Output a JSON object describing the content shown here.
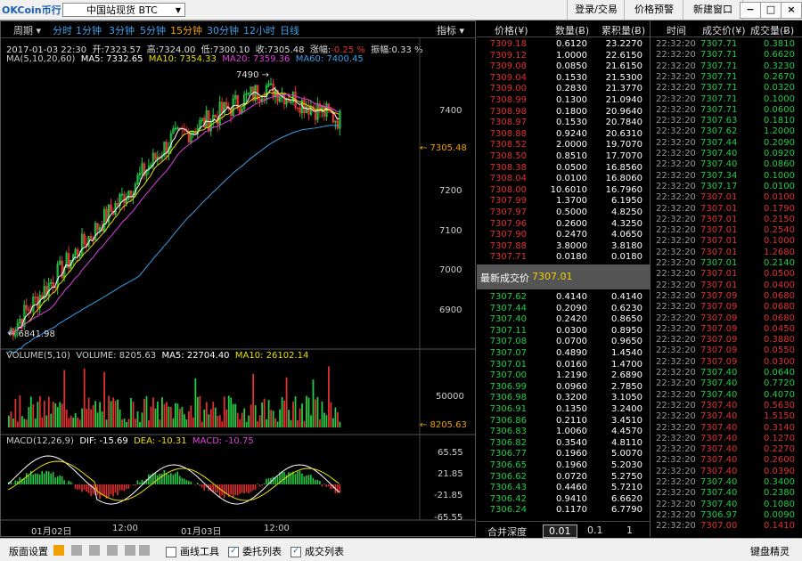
{
  "title": {
    "logo_text": "OKCoin币行",
    "market": "中国站现货 BTC",
    "buttons": [
      "登录/交易",
      "价格预警",
      "新建窗口"
    ],
    "win": [
      "−",
      "□",
      "×"
    ]
  },
  "toolbar": {
    "period_label": "周期",
    "periods": [
      "分时",
      "1分钟",
      "3分钟",
      "5分钟",
      "15分钟",
      "30分钟",
      "12小时",
      "日线"
    ],
    "active_period": "15分钟",
    "indicator_label": "指标"
  },
  "kline": {
    "date": "2017-01-03 22:30",
    "open_label": "开:",
    "open": "7323.57",
    "high_label": "高:",
    "high": "7324.00",
    "low_label": "低:",
    "low": "7300.10",
    "close_label": "收:",
    "close": "7305.48",
    "change_label": "涨幅:",
    "change": "-0.25 %",
    "amp_label": "振幅:",
    "amp": "0.33 %",
    "ma_line": "MA(5,10,20,60)",
    "ma5": "MA5: 7332.65",
    "ma10": "MA10: 7354.33",
    "ma20": "MA20: 7359.36",
    "ma60": "MA60: 7400.45",
    "price_ticks": [
      "7400",
      "7300",
      "7200",
      "7100",
      "7000",
      "6900"
    ],
    "current_price_tag": "← 7305.48",
    "high_mark": "7490 →",
    "low_mark": "← 6841.98"
  },
  "volume": {
    "label": "VOLUME(5,10)",
    "volume": "VOLUME: 8205.63",
    "ma5": "MA5: 22704.40",
    "ma10": "MA10: 26102.14",
    "tick": "50000",
    "current_tag": "← 8205.63"
  },
  "macd": {
    "label": "MACD(12,26,9)",
    "dif": "DIF: -15.69",
    "dea": "DEA: -10.31",
    "macd": "MACD: -10.75",
    "ticks": [
      "65.55",
      "21.85",
      "-21.85",
      "-65.55"
    ]
  },
  "time_axis": [
    "01月02日",
    "12:00",
    "01月03日",
    "12:00"
  ],
  "orderbook": {
    "headers": [
      "价格(¥)",
      "数量(Ƀ)",
      "累积量(Ƀ)"
    ],
    "asks": [
      [
        "7309.18",
        "0.6120",
        "23.2270"
      ],
      [
        "7309.12",
        "1.0000",
        "22.6150"
      ],
      [
        "7309.08",
        "0.0850",
        "21.6150"
      ],
      [
        "7309.04",
        "0.1530",
        "21.5300"
      ],
      [
        "7309.00",
        "0.2830",
        "21.3770"
      ],
      [
        "7308.99",
        "0.1300",
        "21.0940"
      ],
      [
        "7308.98",
        "0.1800",
        "20.9640"
      ],
      [
        "7308.97",
        "0.1530",
        "20.7840"
      ],
      [
        "7308.88",
        "0.9240",
        "20.6310"
      ],
      [
        "7308.52",
        "2.0000",
        "19.7070"
      ],
      [
        "7308.50",
        "0.8510",
        "17.7070"
      ],
      [
        "7308.38",
        "0.0500",
        "16.8560"
      ],
      [
        "7308.04",
        "0.0100",
        "16.8060"
      ],
      [
        "7308.00",
        "10.6010",
        "16.7960"
      ],
      [
        "7307.99",
        "1.3700",
        "6.1950"
      ],
      [
        "7307.97",
        "0.5000",
        "4.8250"
      ],
      [
        "7307.96",
        "0.2600",
        "4.3250"
      ],
      [
        "7307.90",
        "0.2470",
        "4.0650"
      ],
      [
        "7307.88",
        "3.8000",
        "3.8180"
      ],
      [
        "7307.71",
        "0.0180",
        "0.0180"
      ]
    ],
    "last_label": "最新成交价",
    "last_price": "7307.01",
    "bids": [
      [
        "7307.62",
        "0.4140",
        "0.4140"
      ],
      [
        "7307.44",
        "0.2090",
        "0.6230"
      ],
      [
        "7307.40",
        "0.2420",
        "0.8650"
      ],
      [
        "7307.11",
        "0.0300",
        "0.8950"
      ],
      [
        "7307.08",
        "0.0700",
        "0.9650"
      ],
      [
        "7307.07",
        "0.4890",
        "1.4540"
      ],
      [
        "7307.01",
        "0.0160",
        "1.4700"
      ],
      [
        "7307.00",
        "1.2190",
        "2.6890"
      ],
      [
        "7306.99",
        "0.0960",
        "2.7850"
      ],
      [
        "7306.98",
        "0.3200",
        "3.1050"
      ],
      [
        "7306.91",
        "0.1350",
        "3.2400"
      ],
      [
        "7306.86",
        "0.2110",
        "3.4510"
      ],
      [
        "7306.83",
        "1.0060",
        "4.4570"
      ],
      [
        "7306.82",
        "0.3540",
        "4.8110"
      ],
      [
        "7306.77",
        "0.1960",
        "5.0070"
      ],
      [
        "7306.65",
        "0.1960",
        "5.2030"
      ],
      [
        "7306.62",
        "0.0720",
        "5.2750"
      ],
      [
        "7306.43",
        "0.4460",
        "5.7210"
      ],
      [
        "7306.42",
        "0.9410",
        "6.6620"
      ],
      [
        "7306.24",
        "0.1170",
        "6.7790"
      ]
    ],
    "depth_label": "合并深度",
    "depths": [
      "0.01",
      "0.1",
      "1"
    ]
  },
  "trades": {
    "headers": [
      "时间",
      "成交价(¥)",
      "成交量(Ƀ)"
    ],
    "rows": [
      [
        "22:32:20",
        "7307.71",
        "0.3810",
        "g"
      ],
      [
        "22:32:20",
        "7307.71",
        "0.6620",
        "g"
      ],
      [
        "22:32:20",
        "7307.71",
        "0.3230",
        "g"
      ],
      [
        "22:32:20",
        "7307.71",
        "0.2670",
        "g"
      ],
      [
        "22:32:20",
        "7307.71",
        "0.0320",
        "g"
      ],
      [
        "22:32:20",
        "7307.71",
        "0.1000",
        "g"
      ],
      [
        "22:32:20",
        "7307.71",
        "0.0600",
        "g"
      ],
      [
        "22:32:20",
        "7307.63",
        "0.1810",
        "g"
      ],
      [
        "22:32:20",
        "7307.62",
        "1.2000",
        "g"
      ],
      [
        "22:32:20",
        "7307.44",
        "0.2090",
        "g"
      ],
      [
        "22:32:20",
        "7307.40",
        "0.0920",
        "g"
      ],
      [
        "22:32:20",
        "7307.40",
        "0.0860",
        "g"
      ],
      [
        "22:32:20",
        "7307.34",
        "0.1000",
        "g"
      ],
      [
        "22:32:20",
        "7307.17",
        "0.0100",
        "g"
      ],
      [
        "22:32:20",
        "7307.01",
        "0.0100",
        "r"
      ],
      [
        "22:32:20",
        "7307.01",
        "0.1790",
        "r"
      ],
      [
        "22:32:20",
        "7307.01",
        "0.2150",
        "r"
      ],
      [
        "22:32:20",
        "7307.01",
        "0.2540",
        "r"
      ],
      [
        "22:32:20",
        "7307.01",
        "0.1000",
        "r"
      ],
      [
        "22:32:20",
        "7307.01",
        "1.2680",
        "r"
      ],
      [
        "22:32:20",
        "7307.01",
        "0.2140",
        "g"
      ],
      [
        "22:32:20",
        "7307.01",
        "0.0500",
        "r"
      ],
      [
        "22:32:20",
        "7307.01",
        "0.0400",
        "r"
      ],
      [
        "22:32:20",
        "7307.09",
        "0.0680",
        "r"
      ],
      [
        "22:32:20",
        "7307.09",
        "0.0680",
        "r"
      ],
      [
        "22:32:20",
        "7307.09",
        "0.0680",
        "r"
      ],
      [
        "22:32:20",
        "7307.09",
        "0.0450",
        "r"
      ],
      [
        "22:32:20",
        "7307.09",
        "0.3880",
        "r"
      ],
      [
        "22:32:20",
        "7307.09",
        "0.0550",
        "r"
      ],
      [
        "22:32:20",
        "7307.09",
        "0.0300",
        "r"
      ],
      [
        "22:32:20",
        "7307.40",
        "0.0640",
        "g"
      ],
      [
        "22:32:20",
        "7307.40",
        "0.7720",
        "g"
      ],
      [
        "22:32:20",
        "7307.40",
        "0.4070",
        "g"
      ],
      [
        "22:32:20",
        "7307.40",
        "0.5630",
        "r"
      ],
      [
        "22:32:20",
        "7307.40",
        "1.5150",
        "r"
      ],
      [
        "22:32:20",
        "7307.40",
        "0.3140",
        "r"
      ],
      [
        "22:32:20",
        "7307.40",
        "0.1270",
        "r"
      ],
      [
        "22:32:20",
        "7307.40",
        "0.2270",
        "r"
      ],
      [
        "22:32:20",
        "7307.40",
        "0.2600",
        "r"
      ],
      [
        "22:32:20",
        "7307.40",
        "0.0390",
        "r"
      ],
      [
        "22:32:20",
        "7307.40",
        "0.3400",
        "g"
      ],
      [
        "22:32:20",
        "7307.40",
        "0.2380",
        "g"
      ],
      [
        "22:32:20",
        "7307.40",
        "0.1080",
        "g"
      ],
      [
        "22:32:20",
        "7306.97",
        "0.0090",
        "g"
      ],
      [
        "22:32:20",
        "7307.00",
        "0.1410",
        "r"
      ]
    ]
  },
  "statusbar": {
    "layout": "版面设置",
    "draw_tool": "画线工具",
    "order_list": "委托列表",
    "trade_list": "成交列表",
    "hotkey": "键盘精灵"
  },
  "colors": {
    "up": "#22cc44",
    "down": "#e03030",
    "ma5": "#ffffff",
    "ma10": "#e8e000",
    "ma20": "#e040e0",
    "ma60": "#3aa0e8"
  }
}
